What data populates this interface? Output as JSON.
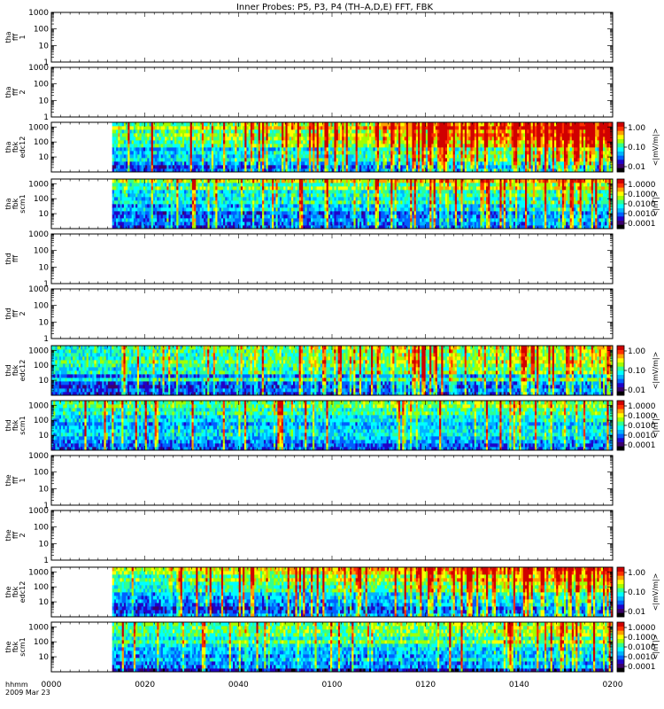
{
  "title": "Inner Probes: P5, P3, P4 (TH–A,D,E) FFT, FBK",
  "x_axis": {
    "info_label_1": "hhmm",
    "info_label_2": "2009 Mar 23",
    "ticks": [
      "0000",
      "0020",
      "0040",
      "0100",
      "0120",
      "0140",
      "0200"
    ]
  },
  "chart_data": {
    "type": "heatmap",
    "title": "Inner Probes: P5, P3, P4 (TH–A,D,E) FFT, FBK",
    "x_range": [
      "0000",
      "0200"
    ],
    "panels": [
      {
        "label": [
          "tha",
          "fff",
          "1"
        ],
        "kind": "empty",
        "ylim": [
          1,
          1000
        ],
        "yticks": [
          "1000",
          "100",
          "10",
          "1"
        ]
      },
      {
        "label": [
          "tha",
          "fff",
          "2"
        ],
        "kind": "empty",
        "ylim": [
          1,
          1000
        ],
        "yticks": [
          "1000",
          "100",
          "10",
          "1"
        ]
      },
      {
        "label": [
          "tha",
          "fbk",
          "edc12"
        ],
        "kind": "spectrogram",
        "data_start": "0013",
        "ylim": [
          1,
          2048
        ],
        "yticks": [
          "1000",
          "100",
          "10"
        ],
        "colorbar": {
          "ticks": [
            "1.00",
            "0.10",
            "0.01"
          ],
          "label": "<|mV/m|>"
        },
        "activity": 0.75
      },
      {
        "label": [
          "tha",
          "fbk",
          "scm1"
        ],
        "kind": "spectrogram",
        "data_start": "0013",
        "ylim": [
          1,
          2048
        ],
        "yticks": [
          "1000",
          "100",
          "10"
        ],
        "colorbar": {
          "ticks": [
            "1.0000",
            "0.1000",
            "0.0100",
            "0.0010",
            "0.0001"
          ],
          "label": "<|nT|>"
        },
        "activity": 0.35
      },
      {
        "label": [
          "thd",
          "fff",
          ""
        ],
        "kind": "empty",
        "ylim": [
          1,
          1000
        ],
        "yticks": [
          "1000",
          "100",
          "10",
          "1"
        ]
      },
      {
        "label": [
          "thd",
          "fff",
          "2"
        ],
        "kind": "empty",
        "ylim": [
          1,
          1000
        ],
        "yticks": [
          "1000",
          "100",
          "10",
          "1"
        ]
      },
      {
        "label": [
          "thd",
          "fbk",
          "edc12"
        ],
        "kind": "spectrogram",
        "data_start": "0000",
        "ylim": [
          1,
          2048
        ],
        "yticks": [
          "1000",
          "100",
          "10"
        ],
        "colorbar": {
          "ticks": [
            "1.00",
            "0.10",
            "0.01"
          ],
          "label": "<|mV/m|>"
        },
        "activity": 0.45
      },
      {
        "label": [
          "thd",
          "fbk",
          "scm1"
        ],
        "kind": "spectrogram",
        "data_start": "0000",
        "ylim": [
          1,
          2048
        ],
        "yticks": [
          "1000",
          "100",
          "10"
        ],
        "colorbar": {
          "ticks": [
            "1.0000",
            "0.1000",
            "0.0100",
            "0.0010",
            "0.0001"
          ],
          "label": "<|nT|>"
        },
        "activity": 0.2
      },
      {
        "label": [
          "the",
          "fff",
          "1"
        ],
        "kind": "empty",
        "ylim": [
          1,
          1000
        ],
        "yticks": [
          "1000",
          "100",
          "10",
          "1"
        ]
      },
      {
        "label": [
          "the",
          "fff",
          "2"
        ],
        "kind": "empty",
        "ylim": [
          1,
          1000
        ],
        "yticks": [
          "1000",
          "100",
          "10",
          "1"
        ]
      },
      {
        "label": [
          "the",
          "fbk",
          "edc12"
        ],
        "kind": "spectrogram",
        "data_start": "0013",
        "ylim": [
          1,
          2048
        ],
        "yticks": [
          "1000",
          "100",
          "10"
        ],
        "colorbar": {
          "ticks": [
            "1.00",
            "0.10",
            "0.01"
          ],
          "label": "<|mV/m|>"
        },
        "activity": 0.5
      },
      {
        "label": [
          "the",
          "fbk",
          "scm1"
        ],
        "kind": "spectrogram",
        "data_start": "0013",
        "ylim": [
          1,
          2048
        ],
        "yticks": [
          "1000",
          "100",
          "10"
        ],
        "colorbar": {
          "ticks": [
            "1.0000",
            "0.1000",
            "0.0100",
            "0.0010",
            "0.0001"
          ],
          "label": "<|nT|>"
        },
        "activity": 0.25
      }
    ],
    "colormap": [
      "#000000",
      "#3b006b",
      "#2000c8",
      "#0060ff",
      "#00b4ff",
      "#00ffff",
      "#30ff90",
      "#a0ff00",
      "#ffff00",
      "#ffa000",
      "#ff3000",
      "#d00000"
    ]
  }
}
